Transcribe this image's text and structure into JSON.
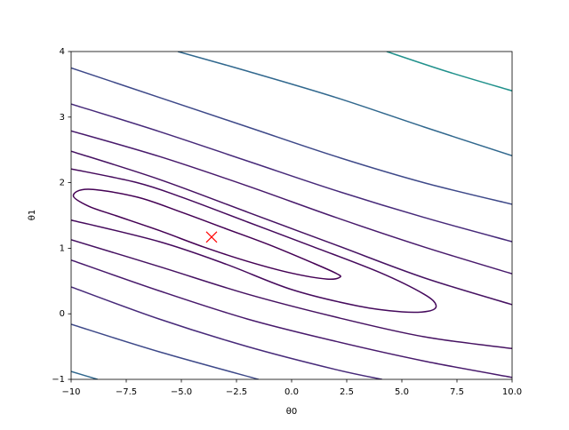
{
  "chart_data": {
    "type": "contour",
    "xlabel": "θ0",
    "ylabel": "θ1",
    "xlim": [
      -10,
      10
    ],
    "ylim": [
      -1,
      4
    ],
    "xticks": [
      {
        "value": -10,
        "label": "−10"
      },
      {
        "value": -7.5,
        "label": "−7.5"
      },
      {
        "value": -5,
        "label": "−5.0"
      },
      {
        "value": -2.5,
        "label": "−2.5"
      },
      {
        "value": 0,
        "label": "0.0"
      },
      2.5,
      {
        "value": 5,
        "label": "5.0"
      },
      7.5,
      {
        "value": 10,
        "label": "10.0"
      }
    ],
    "yticks": [
      {
        "value": -1,
        "label": "−1"
      },
      0,
      1,
      2,
      3,
      4
    ],
    "series": [
      {
        "color": "#440154",
        "closed": true,
        "x": [
          -9.9,
          -9.2,
          -7,
          -5,
          -3,
          -1,
          1,
          2.0,
          2.2,
          1.6,
          0,
          -2,
          -4,
          -6,
          -8,
          -9.2
        ],
        "y": [
          1.8,
          1.9,
          1.78,
          1.55,
          1.3,
          1.05,
          0.77,
          0.62,
          0.56,
          0.53,
          0.62,
          0.8,
          1.02,
          1.27,
          1.5,
          1.64
        ]
      },
      {
        "color": "#450a5c",
        "x": [
          -10,
          -7,
          -5,
          -2,
          1,
          4,
          6,
          6.55,
          6.2,
          5,
          3,
          0,
          -3,
          -6,
          -10
        ],
        "y": [
          2.21,
          2.0,
          1.78,
          1.4,
          1.02,
          0.63,
          0.3,
          0.13,
          0.04,
          0.03,
          0.12,
          0.37,
          0.76,
          1.1,
          1.43
        ]
      },
      {
        "color": "#461262",
        "x": [
          -10,
          -6,
          -2,
          2,
          6,
          10
        ],
        "y": [
          2.48,
          2.05,
          1.55,
          1.05,
          0.55,
          0.14
        ]
      },
      {
        "color": "#461262",
        "x": [
          -10,
          -6,
          -2,
          2,
          6,
          10
        ],
        "y": [
          1.13,
          0.72,
          0.3,
          -0.05,
          -0.35,
          -0.53
        ]
      },
      {
        "color": "#481a6c",
        "x": [
          -10,
          -6,
          -2,
          2,
          6,
          10
        ],
        "y": [
          2.79,
          2.4,
          1.95,
          1.47,
          1.02,
          0.61
        ]
      },
      {
        "color": "#481a6c",
        "x": [
          -10,
          -6,
          -2,
          2,
          6,
          10
        ],
        "y": [
          0.82,
          0.35,
          -0.08,
          -0.42,
          -0.72,
          -0.97
        ]
      },
      {
        "color": "#472a7a",
        "x": [
          -10,
          -6,
          -2,
          2,
          6,
          10
        ],
        "y": [
          3.2,
          2.78,
          2.33,
          1.88,
          1.47,
          1.1
        ]
      },
      {
        "color": "#472a7a",
        "x": [
          -10,
          -6,
          -2,
          2,
          4.1
        ],
        "y": [
          0.41,
          -0.08,
          -0.5,
          -0.85,
          -1
        ]
      },
      {
        "color": "#3e4989",
        "x": [
          -10,
          -6,
          -2,
          2,
          6,
          10
        ],
        "y": [
          3.75,
          3.3,
          2.85,
          2.4,
          2.0,
          1.67
        ]
      },
      {
        "color": "#3e4989",
        "x": [
          -10,
          -6,
          -1.5
        ],
        "y": [
          -0.16,
          -0.58,
          -1
        ]
      },
      {
        "color": "#31688e",
        "x": [
          -5.16,
          -2,
          2,
          6,
          10
        ],
        "y": [
          4,
          3.7,
          3.3,
          2.85,
          2.41
        ]
      },
      {
        "color": "#31688e",
        "x": [
          -10,
          -8.8
        ],
        "y": [
          -0.88,
          -1
        ]
      },
      {
        "color": "#21918c",
        "x": [
          4.31,
          7,
          10
        ],
        "y": [
          4,
          3.7,
          3.4
        ]
      }
    ],
    "marker": {
      "x": -3.63,
      "y": 1.17,
      "color": "#ff0000"
    }
  }
}
